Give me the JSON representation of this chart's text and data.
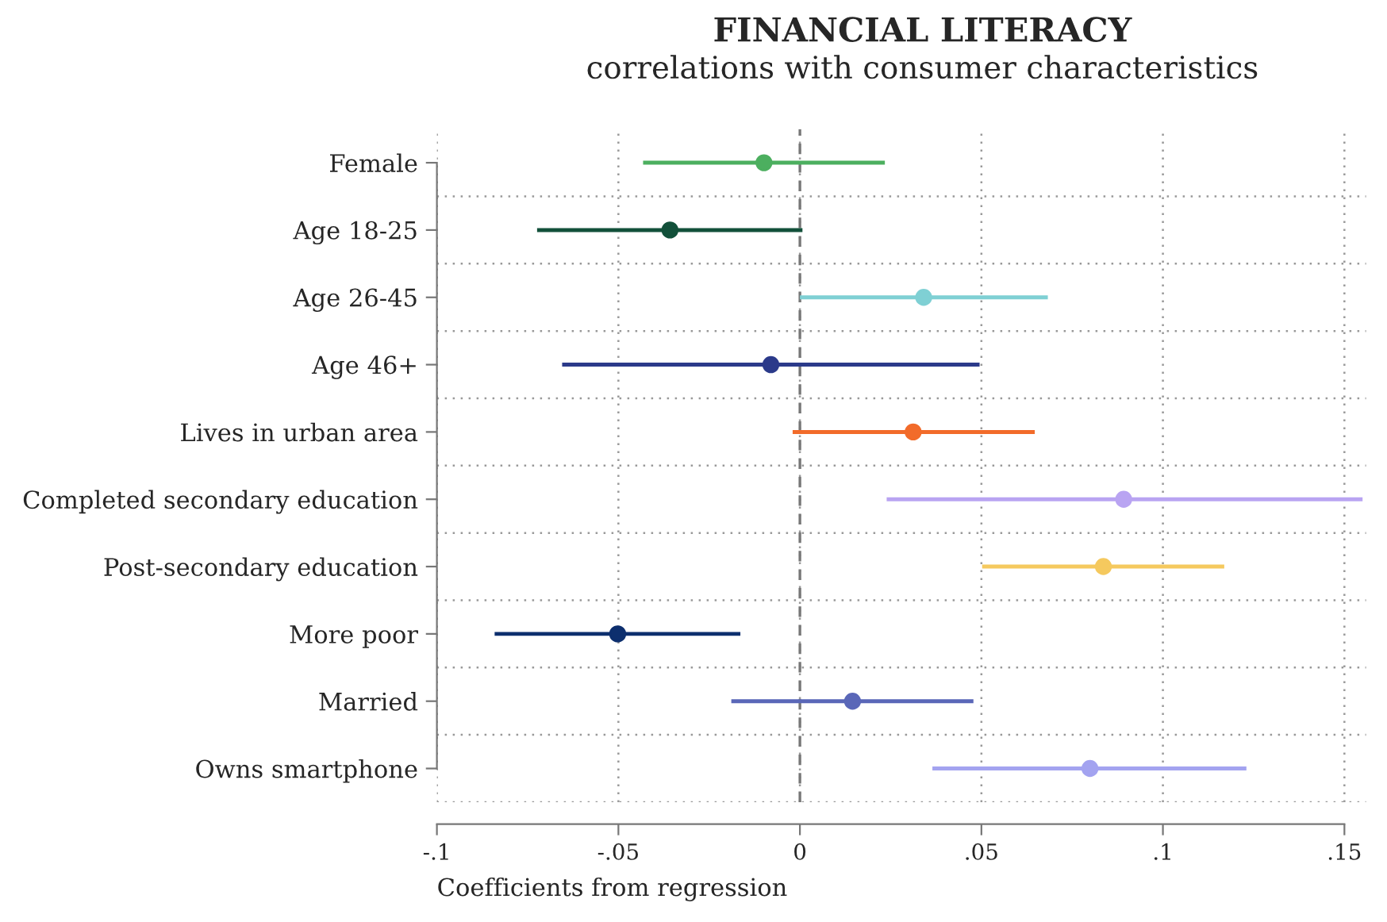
{
  "chart_data": {
    "type": "scatter",
    "orientation": "horizontal",
    "title": "FINANCIAL LITERACY",
    "subtitle": "correlations with consumer characteristics",
    "xlabel": "Coefficients from regression",
    "categories": [
      "Female",
      "Age 18-25",
      "Age 26-45",
      "Age 46+",
      "Lives in urban area",
      "Completed secondary education",
      "Post-secondary education",
      "More poor",
      "Married",
      "Owns smartphone"
    ],
    "values": [
      -0.0099,
      -0.0358,
      0.0341,
      -0.008,
      0.0312,
      0.0892,
      0.0836,
      -0.0502,
      0.0145,
      0.0799
    ],
    "errors": [
      [
        -0.0432,
        0.0234
      ],
      [
        -0.0724,
        0.0007
      ],
      [
        0.0,
        0.0683
      ],
      [
        -0.0655,
        0.0495
      ],
      [
        -0.002,
        0.0647
      ],
      [
        0.0239,
        0.155
      ],
      [
        0.0502,
        0.1169
      ],
      [
        -0.0841,
        -0.0164
      ],
      [
        -0.0189,
        0.0478
      ],
      [
        0.0365,
        0.123
      ]
    ],
    "colors": [
      "#4caf5f",
      "#12503a",
      "#7fd0d4",
      "#2b3a8a",
      "#f26b2a",
      "#b9a4f2",
      "#f5c95e",
      "#0d2f6e",
      "#5a67b8",
      "#a3a3f0"
    ],
    "xlim": [
      -0.1,
      0.156
    ],
    "xticks": [
      {
        "value": -0.1,
        "label": "-.1"
      },
      {
        "value": -0.05,
        "label": "-.05"
      },
      {
        "value": 0,
        "label": "0"
      },
      {
        "value": 0.05,
        "label": ".05"
      },
      {
        "value": 0.1,
        "label": ".1"
      },
      {
        "value": 0.15,
        "label": ".15"
      }
    ],
    "ref_lines": [
      {
        "axis": "x",
        "value": 0,
        "color": "#777777",
        "line_style": "dashed"
      }
    ],
    "grid": true,
    "marker": "circle"
  }
}
